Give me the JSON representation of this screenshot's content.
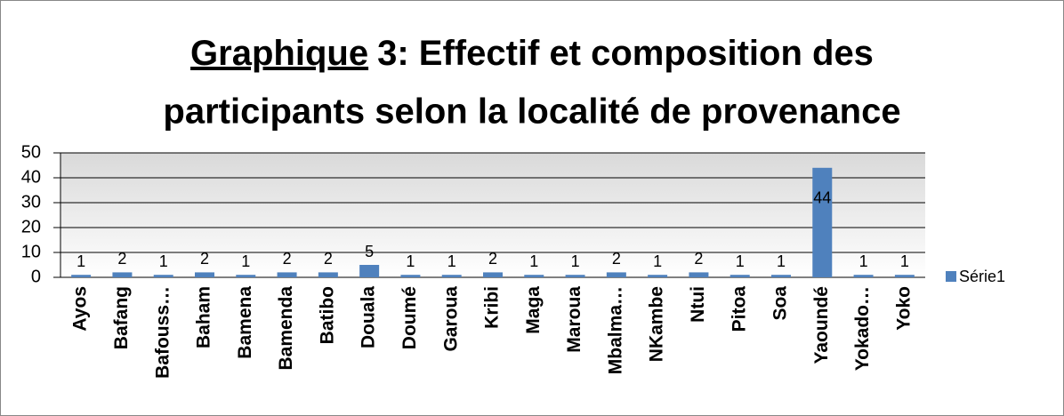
{
  "chart_data": {
    "type": "bar",
    "title_underlined": "Graphique",
    "title_lines": [
      "3: Effectif et composition des",
      "participants selon la localité de provenance"
    ],
    "categories": [
      "Ayos",
      "Bafang",
      "Bafouss…",
      "Baham",
      "Bamena",
      "Bamenda",
      "Batibo",
      "Douala",
      "Doumé",
      "Garoua",
      "Kribi",
      "Maga",
      "Maroua",
      "Mbalma…",
      "NKambe",
      "Ntui",
      "Pitoa",
      "Soa",
      "Yaoundé",
      "Yokado…",
      "Yoko"
    ],
    "series": [
      {
        "name": "Série1",
        "color": "#4f81bd",
        "values": [
          1,
          2,
          1,
          2,
          1,
          2,
          2,
          5,
          1,
          1,
          2,
          1,
          1,
          2,
          1,
          2,
          1,
          1,
          44,
          1,
          1
        ]
      }
    ],
    "ylim": [
      0,
      50
    ],
    "yticks": [
      0,
      10,
      20,
      30,
      40,
      50
    ],
    "grid": true,
    "legend": "right"
  }
}
